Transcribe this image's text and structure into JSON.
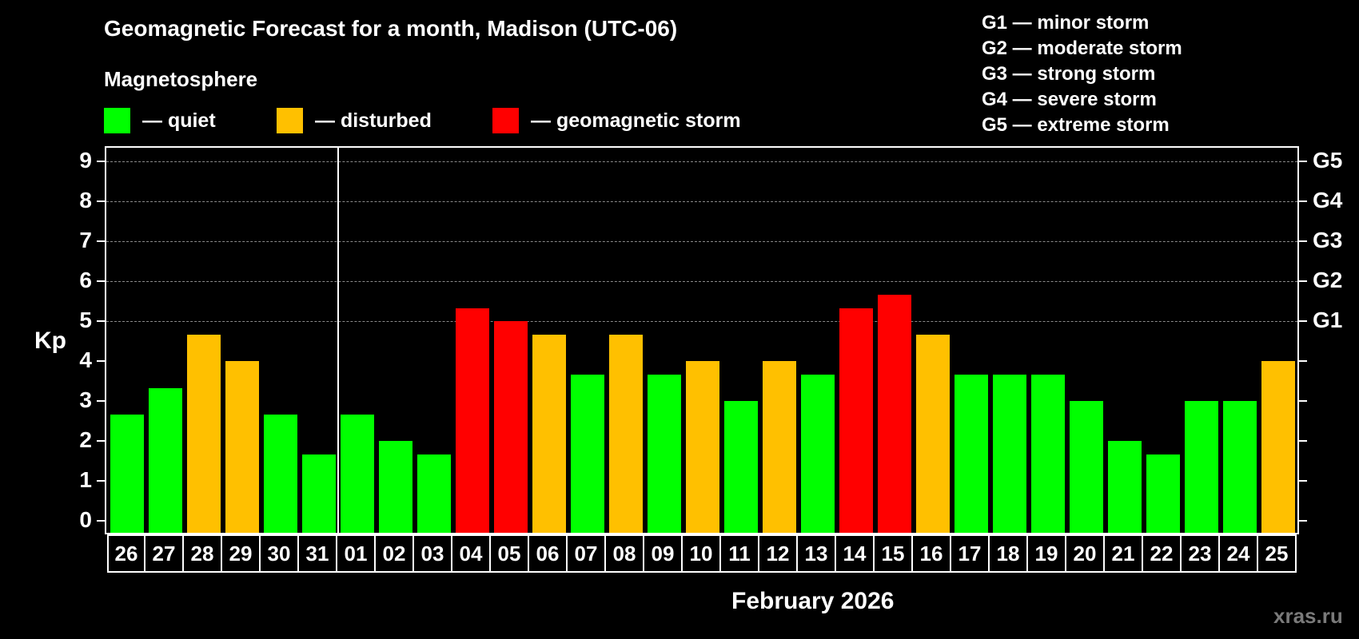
{
  "header": {
    "title": "Geomagnetic Forecast for a month, Madison (UTC-06)",
    "subtitle": "Magnetosphere"
  },
  "legend": [
    {
      "label": "— quiet",
      "color": "#00ff00"
    },
    {
      "label": "— disturbed",
      "color": "#ffc000"
    },
    {
      "label": "— geomagnetic storm",
      "color": "#ff0000"
    }
  ],
  "g_scale": [
    "G1 — minor storm",
    "G2 — moderate storm",
    "G3 — strong storm",
    "G4 — severe storm",
    "G5 — extreme storm"
  ],
  "axis": {
    "ylabel": "Kp",
    "yticks": [
      "0",
      "1",
      "2",
      "3",
      "4",
      "5",
      "6",
      "7",
      "8",
      "9"
    ],
    "right_labels": {
      "5": "G1",
      "6": "G2",
      "7": "G3",
      "8": "G4",
      "9": "G5"
    },
    "xlabel": "February 2026"
  },
  "watermark": "xras.ru",
  "colors": {
    "quiet": "#00ff00",
    "disturbed": "#ffc000",
    "storm": "#ff0000",
    "background": "#000000",
    "grid": "#8a8a8a"
  },
  "chart_data": {
    "type": "bar",
    "title": "Geomagnetic Forecast for a month, Madison (UTC-06)",
    "xlabel": "February 2026",
    "ylabel": "Kp",
    "ylim": [
      0,
      9
    ],
    "grid": true,
    "categories": [
      "26",
      "27",
      "28",
      "29",
      "30",
      "31",
      "01",
      "02",
      "03",
      "04",
      "05",
      "06",
      "07",
      "08",
      "09",
      "10",
      "11",
      "12",
      "13",
      "14",
      "15",
      "16",
      "17",
      "18",
      "19",
      "20",
      "21",
      "22",
      "23",
      "24",
      "25"
    ],
    "values": [
      2.67,
      3.33,
      4.67,
      4.0,
      2.67,
      1.67,
      2.67,
      2.0,
      1.67,
      5.33,
      5.0,
      4.67,
      3.67,
      4.67,
      3.67,
      4.0,
      3.0,
      4.0,
      3.67,
      5.33,
      5.67,
      4.67,
      3.67,
      3.67,
      3.67,
      3.0,
      2.0,
      1.67,
      3.0,
      3.0,
      4.0
    ],
    "status": [
      "quiet",
      "quiet",
      "disturbed",
      "disturbed",
      "quiet",
      "quiet",
      "quiet",
      "quiet",
      "quiet",
      "storm",
      "storm",
      "disturbed",
      "quiet",
      "disturbed",
      "quiet",
      "disturbed",
      "quiet",
      "disturbed",
      "quiet",
      "storm",
      "storm",
      "disturbed",
      "quiet",
      "quiet",
      "quiet",
      "quiet",
      "quiet",
      "quiet",
      "quiet",
      "quiet",
      "disturbed"
    ],
    "legend": [
      "quiet",
      "disturbed",
      "geomagnetic storm"
    ],
    "secondary_yaxis": {
      "5": "G1",
      "6": "G2",
      "7": "G3",
      "8": "G4",
      "9": "G5"
    }
  }
}
